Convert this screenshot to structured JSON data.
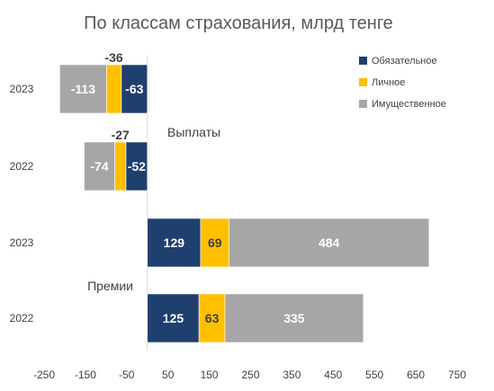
{
  "chart_data": {
    "type": "bar",
    "orientation": "horizontal",
    "stacked": true,
    "title": "По классам страхования, млрд тенге",
    "x_ticks": [
      -250,
      -150,
      -50,
      50,
      150,
      250,
      350,
      450,
      550,
      650,
      750
    ],
    "xlim": [
      -250,
      750
    ],
    "grid": false,
    "legend_position": "top-right",
    "groups": [
      {
        "label": "Выплаты",
        "categories": [
          "2023",
          "2022"
        ]
      },
      {
        "label": "Премии",
        "categories": [
          "2023",
          "2022"
        ]
      }
    ],
    "categories": [
      "2023",
      "2022",
      "2023",
      "2022"
    ],
    "series": [
      {
        "name": "Обязательное",
        "color": "#1f3f6e",
        "label_color": "#ffffff",
        "values": [
          -63,
          -52,
          129,
          125
        ],
        "labels": [
          "-63",
          "-52",
          "129",
          "125"
        ]
      },
      {
        "name": "Личное",
        "color": "#ffc000",
        "label_color": "#404040",
        "values": [
          -36,
          -27,
          69,
          63
        ],
        "labels": [
          "",
          "",
          "69",
          "63"
        ]
      },
      {
        "name": "Имущественное",
        "color": "#a6a6a6",
        "label_color": "#ffffff",
        "values": [
          -113,
          -74,
          484,
          335
        ],
        "labels": [
          "-113",
          "-74",
          "484",
          "335"
        ]
      }
    ],
    "external_labels": [
      {
        "row": 0,
        "series": 1,
        "text": "-36"
      },
      {
        "row": 1,
        "series": 1,
        "text": "-27"
      }
    ]
  }
}
